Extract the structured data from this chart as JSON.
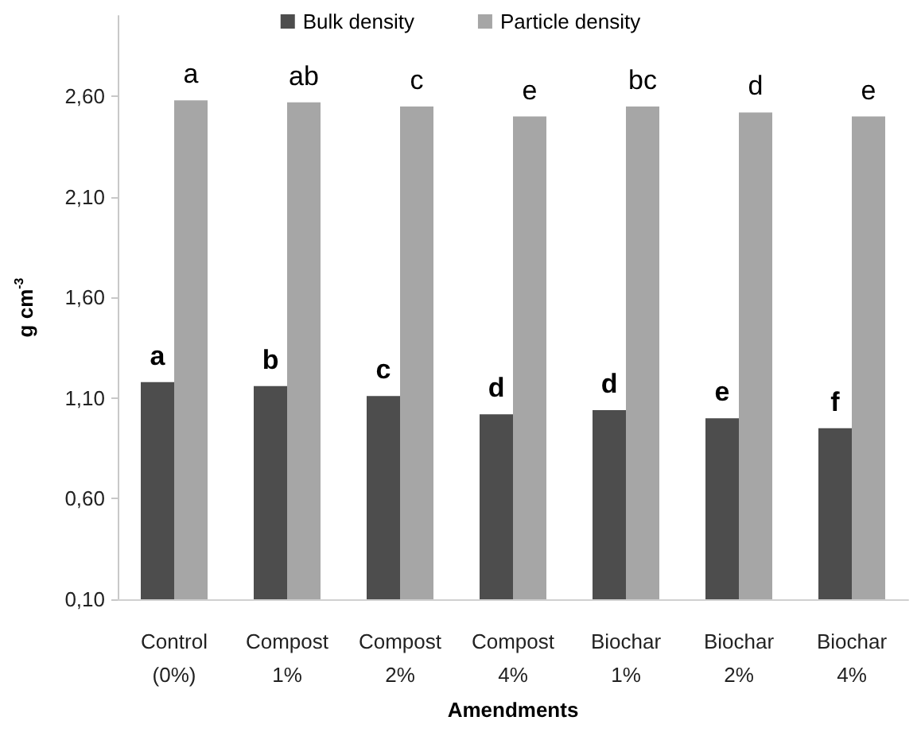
{
  "chart_data": {
    "type": "bar",
    "xlabel": "Amendments",
    "ylabel": "g cm$^{-3}$",
    "categories": [
      "Control (0%)",
      "Compost 1%",
      "Compost 2%",
      "Compost 4%",
      "Biochar 1%",
      "Biochar 2%",
      "Biochar 4%"
    ],
    "series": [
      {
        "name": "Bulk density",
        "color": "#4d4d4d",
        "values": [
          1.18,
          1.16,
          1.11,
          1.02,
          1.04,
          1.0,
          0.95
        ],
        "value_labels": [
          "a",
          "b",
          "c",
          "d",
          "d",
          "e",
          "f"
        ]
      },
      {
        "name": "Particle density",
        "color": "#a6a6a6",
        "values": [
          2.58,
          2.57,
          2.55,
          2.5,
          2.55,
          2.52,
          2.5
        ],
        "value_labels": [
          "a",
          "ab",
          "c",
          "e",
          "bc",
          "d",
          "e"
        ]
      }
    ],
    "ylim": [
      0.1,
      3.0
    ],
    "yticks": [
      {
        "value": 0.1,
        "label": "0,10"
      },
      {
        "value": 0.6,
        "label": "0,60"
      },
      {
        "value": 1.1,
        "label": "1,10"
      },
      {
        "value": 1.6,
        "label": "1,60"
      },
      {
        "value": 2.1,
        "label": "2,10"
      },
      {
        "value": 2.6,
        "label": "2,60"
      }
    ],
    "grid": false,
    "legend": "top"
  }
}
